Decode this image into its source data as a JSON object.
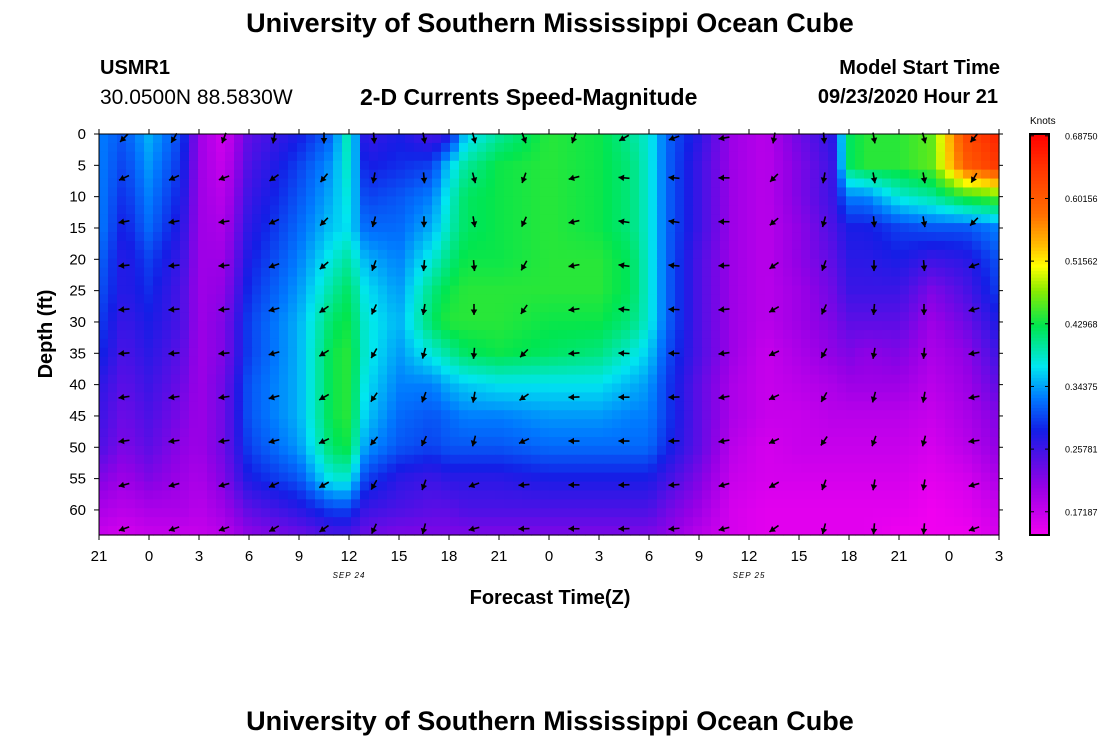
{
  "header": {
    "title": "University of Southern Mississippi Ocean Cube",
    "station_id": "USMR1",
    "coordinates": "30.0500N 88.5830W",
    "subtitle": "2-D Currents Speed-Magnitude",
    "model_start_label": "Model Start Time",
    "model_start_value": "09/23/2020 Hour 21"
  },
  "footer": {
    "title": "University of Southern Mississippi Ocean Cube"
  },
  "chart_data": {
    "type": "heatmap",
    "title": "2-D Currents Speed-Magnitude",
    "xlabel": "Forecast Time(Z)",
    "ylabel": "Depth (ft)",
    "x_ticks": [
      "21",
      "0",
      "3",
      "6",
      "9",
      "12",
      "15",
      "18",
      "21",
      "0",
      "3",
      "6",
      "9",
      "12",
      "15",
      "18",
      "21",
      "0",
      "3"
    ],
    "x_range_hours": [
      0,
      54
    ],
    "date_labels": [
      {
        "label": "SEP 24",
        "hour": 15
      },
      {
        "label": "SEP 25",
        "hour": 39
      }
    ],
    "y_ticks": [
      0,
      5,
      10,
      15,
      20,
      25,
      30,
      35,
      40,
      45,
      50,
      55,
      60
    ],
    "y_range": [
      0,
      64
    ],
    "colorbar": {
      "unit": "Knots",
      "range": [
        0.14,
        0.69
      ],
      "tick_labels": [
        "0.68750",
        "0.60156",
        "0.51562",
        "0.42968",
        "0.34375",
        "0.25781",
        "0.17187"
      ]
    },
    "speed_key_times": [
      0,
      1.5,
      3,
      5,
      6,
      7.5,
      9,
      12,
      14,
      15,
      16,
      18,
      20,
      21,
      22,
      24,
      27,
      30,
      32,
      33,
      34,
      36,
      38,
      40,
      42,
      44,
      45,
      46,
      48,
      50,
      52,
      54
    ],
    "speed_key_depths": [
      0,
      5,
      10,
      15,
      20,
      25,
      30,
      35,
      40,
      45,
      50,
      55,
      60,
      64
    ],
    "speed_knots": [
      [
        0.33,
        0.31,
        0.35,
        0.3,
        0.2,
        0.16,
        0.24,
        0.28,
        0.32,
        0.4,
        0.26,
        0.28,
        0.25,
        0.27,
        0.36,
        0.4,
        0.44,
        0.43,
        0.4,
        0.38,
        0.32,
        0.27,
        0.2,
        0.18,
        0.23,
        0.27,
        0.42,
        0.44,
        0.44,
        0.46,
        0.62,
        0.66
      ],
      [
        0.33,
        0.3,
        0.34,
        0.29,
        0.2,
        0.17,
        0.25,
        0.3,
        0.34,
        0.39,
        0.28,
        0.29,
        0.3,
        0.36,
        0.4,
        0.43,
        0.44,
        0.43,
        0.41,
        0.38,
        0.32,
        0.26,
        0.2,
        0.18,
        0.22,
        0.26,
        0.42,
        0.44,
        0.44,
        0.46,
        0.6,
        0.64
      ],
      [
        0.33,
        0.29,
        0.33,
        0.28,
        0.2,
        0.18,
        0.26,
        0.31,
        0.35,
        0.38,
        0.3,
        0.31,
        0.33,
        0.38,
        0.42,
        0.43,
        0.44,
        0.43,
        0.41,
        0.38,
        0.32,
        0.26,
        0.2,
        0.18,
        0.22,
        0.26,
        0.33,
        0.33,
        0.38,
        0.4,
        0.44,
        0.46
      ],
      [
        0.33,
        0.28,
        0.32,
        0.27,
        0.2,
        0.19,
        0.27,
        0.32,
        0.36,
        0.37,
        0.32,
        0.32,
        0.35,
        0.39,
        0.42,
        0.43,
        0.44,
        0.43,
        0.41,
        0.38,
        0.32,
        0.26,
        0.2,
        0.18,
        0.21,
        0.25,
        0.28,
        0.28,
        0.3,
        0.31,
        0.31,
        0.33
      ],
      [
        0.32,
        0.27,
        0.3,
        0.26,
        0.2,
        0.2,
        0.28,
        0.33,
        0.38,
        0.4,
        0.35,
        0.33,
        0.38,
        0.41,
        0.43,
        0.43,
        0.44,
        0.44,
        0.42,
        0.38,
        0.32,
        0.25,
        0.2,
        0.18,
        0.21,
        0.24,
        0.27,
        0.27,
        0.28,
        0.26,
        0.27,
        0.31
      ],
      [
        0.31,
        0.27,
        0.29,
        0.25,
        0.2,
        0.21,
        0.29,
        0.34,
        0.4,
        0.42,
        0.37,
        0.34,
        0.41,
        0.43,
        0.44,
        0.44,
        0.44,
        0.44,
        0.42,
        0.38,
        0.32,
        0.25,
        0.2,
        0.18,
        0.2,
        0.23,
        0.26,
        0.26,
        0.26,
        0.22,
        0.25,
        0.3
      ],
      [
        0.3,
        0.26,
        0.28,
        0.25,
        0.2,
        0.22,
        0.3,
        0.35,
        0.42,
        0.43,
        0.38,
        0.35,
        0.42,
        0.44,
        0.44,
        0.44,
        0.43,
        0.43,
        0.41,
        0.38,
        0.32,
        0.25,
        0.2,
        0.18,
        0.2,
        0.22,
        0.24,
        0.24,
        0.24,
        0.2,
        0.23,
        0.28
      ],
      [
        0.29,
        0.25,
        0.27,
        0.24,
        0.2,
        0.22,
        0.3,
        0.35,
        0.43,
        0.44,
        0.38,
        0.34,
        0.38,
        0.4,
        0.42,
        0.43,
        0.42,
        0.41,
        0.38,
        0.36,
        0.31,
        0.25,
        0.2,
        0.17,
        0.19,
        0.21,
        0.22,
        0.21,
        0.22,
        0.19,
        0.21,
        0.26
      ],
      [
        0.27,
        0.24,
        0.26,
        0.23,
        0.2,
        0.23,
        0.31,
        0.35,
        0.43,
        0.44,
        0.37,
        0.33,
        0.33,
        0.35,
        0.36,
        0.37,
        0.37,
        0.37,
        0.35,
        0.34,
        0.3,
        0.24,
        0.19,
        0.17,
        0.18,
        0.19,
        0.2,
        0.2,
        0.2,
        0.18,
        0.2,
        0.24
      ],
      [
        0.26,
        0.23,
        0.25,
        0.22,
        0.2,
        0.23,
        0.31,
        0.35,
        0.43,
        0.44,
        0.36,
        0.32,
        0.31,
        0.32,
        0.33,
        0.33,
        0.34,
        0.34,
        0.33,
        0.33,
        0.3,
        0.24,
        0.19,
        0.17,
        0.17,
        0.18,
        0.18,
        0.18,
        0.18,
        0.17,
        0.19,
        0.22
      ],
      [
        0.25,
        0.22,
        0.24,
        0.21,
        0.2,
        0.23,
        0.3,
        0.34,
        0.42,
        0.43,
        0.34,
        0.31,
        0.3,
        0.31,
        0.31,
        0.31,
        0.32,
        0.32,
        0.32,
        0.32,
        0.29,
        0.24,
        0.18,
        0.16,
        0.17,
        0.17,
        0.17,
        0.17,
        0.17,
        0.16,
        0.18,
        0.21
      ],
      [
        0.22,
        0.2,
        0.22,
        0.2,
        0.19,
        0.22,
        0.28,
        0.31,
        0.38,
        0.38,
        0.3,
        0.27,
        0.26,
        0.27,
        0.27,
        0.27,
        0.28,
        0.28,
        0.28,
        0.28,
        0.26,
        0.22,
        0.17,
        0.16,
        0.16,
        0.16,
        0.16,
        0.16,
        0.16,
        0.15,
        0.16,
        0.19
      ],
      [
        0.19,
        0.18,
        0.19,
        0.19,
        0.18,
        0.2,
        0.24,
        0.27,
        0.3,
        0.3,
        0.26,
        0.25,
        0.24,
        0.24,
        0.25,
        0.25,
        0.25,
        0.25,
        0.25,
        0.25,
        0.23,
        0.2,
        0.16,
        0.15,
        0.15,
        0.15,
        0.15,
        0.15,
        0.15,
        0.14,
        0.15,
        0.17
      ],
      [
        0.17,
        0.16,
        0.17,
        0.17,
        0.17,
        0.18,
        0.21,
        0.23,
        0.25,
        0.25,
        0.23,
        0.22,
        0.22,
        0.22,
        0.22,
        0.22,
        0.22,
        0.22,
        0.22,
        0.22,
        0.21,
        0.18,
        0.16,
        0.15,
        0.15,
        0.15,
        0.15,
        0.15,
        0.14,
        0.14,
        0.14,
        0.16
      ]
    ],
    "vector_times": [
      1.5,
      4.5,
      7.5,
      10.5,
      13.5,
      16.5,
      19.5,
      22.5,
      25.5,
      28.5,
      31.5,
      34.5,
      37.5,
      40.5,
      43.5,
      46.5,
      49.5,
      52.5
    ],
    "vector_depths": [
      0,
      7,
      14,
      21,
      28,
      35,
      42,
      49,
      56,
      63
    ],
    "vector_directions_deg": [
      [
        225,
        210,
        200,
        190,
        180,
        175,
        170,
        165,
        160,
        200,
        240,
        250,
        260,
        190,
        175,
        170,
        165,
        220
      ],
      [
        245,
        245,
        250,
        235,
        220,
        190,
        175,
        165,
        200,
        255,
        275,
        275,
        270,
        225,
        190,
        170,
        170,
        210
      ],
      [
        260,
        260,
        262,
        245,
        225,
        195,
        180,
        170,
        205,
        258,
        278,
        278,
        270,
        230,
        195,
        175,
        170,
        225
      ],
      [
        265,
        265,
        265,
        250,
        230,
        200,
        185,
        175,
        210,
        260,
        278,
        275,
        268,
        235,
        200,
        180,
        175,
        250
      ],
      [
        265,
        265,
        265,
        255,
        235,
        205,
        190,
        180,
        215,
        262,
        275,
        272,
        265,
        240,
        205,
        185,
        180,
        255
      ],
      [
        265,
        265,
        265,
        255,
        238,
        210,
        195,
        185,
        225,
        265,
        272,
        270,
        262,
        245,
        210,
        190,
        185,
        260
      ],
      [
        262,
        262,
        262,
        255,
        240,
        215,
        200,
        190,
        235,
        268,
        270,
        268,
        260,
        245,
        210,
        195,
        190,
        260
      ],
      [
        262,
        262,
        262,
        255,
        245,
        220,
        205,
        195,
        245,
        270,
        270,
        268,
        260,
        245,
        215,
        200,
        195,
        262
      ],
      [
        255,
        255,
        255,
        245,
        240,
        210,
        200,
        250,
        265,
        270,
        268,
        265,
        255,
        240,
        200,
        190,
        190,
        255
      ],
      [
        250,
        250,
        250,
        240,
        235,
        205,
        195,
        255,
        268,
        270,
        268,
        265,
        255,
        235,
        195,
        185,
        185,
        250
      ]
    ]
  }
}
